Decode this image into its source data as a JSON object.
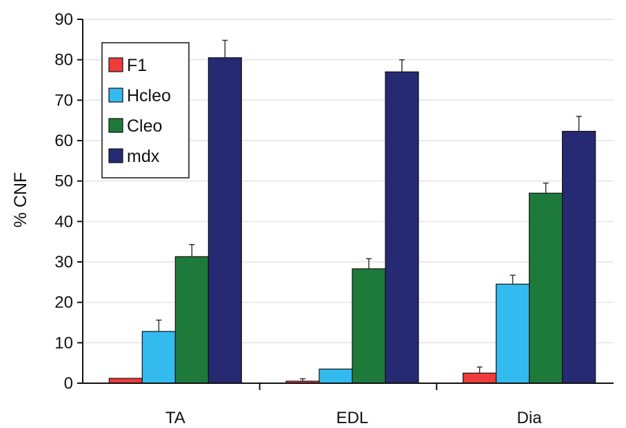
{
  "chart_data": {
    "type": "bar",
    "ylabel": "% CNF",
    "xlabel": "",
    "ylim": [
      0,
      90
    ],
    "yticks": [
      0,
      10,
      20,
      30,
      40,
      50,
      60,
      70,
      80,
      90
    ],
    "categories": [
      "TA",
      "EDL",
      "Dia"
    ],
    "series": [
      {
        "name": "F1",
        "color": "#ee3b3b",
        "values": [
          1.2,
          0.5,
          2.5
        ],
        "errors": [
          0,
          0.6,
          1.5
        ]
      },
      {
        "name": "Hcleo",
        "color": "#33bbf0",
        "values": [
          12.8,
          3.5,
          24.5
        ],
        "errors": [
          2.8,
          0,
          2.2
        ]
      },
      {
        "name": "Cleo",
        "color": "#1e7a3a",
        "values": [
          31.3,
          28.3,
          47.0
        ],
        "errors": [
          3.0,
          2.5,
          2.5
        ]
      },
      {
        "name": "mdx",
        "color": "#262a72",
        "values": [
          80.5,
          77.0,
          62.3
        ],
        "errors": [
          4.3,
          3.0,
          3.7
        ]
      }
    ],
    "legend_position": "top-left-inside",
    "grid": true,
    "error_bars": true
  }
}
